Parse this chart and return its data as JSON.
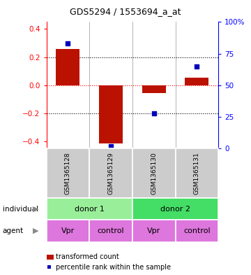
{
  "title": "GDS5294 / 1553694_a_at",
  "categories": [
    "GSM1365128",
    "GSM1365129",
    "GSM1365130",
    "GSM1365131"
  ],
  "bar_values": [
    0.26,
    -0.415,
    -0.055,
    0.055
  ],
  "percentile_values": [
    83,
    2,
    28,
    65
  ],
  "ylim_left": [
    -0.45,
    0.45
  ],
  "ylim_right": [
    0,
    100
  ],
  "yticks_left": [
    -0.4,
    -0.2,
    0.0,
    0.2,
    0.4
  ],
  "yticks_right": [
    0,
    25,
    50,
    75,
    100
  ],
  "ytick_right_labels": [
    "0",
    "25",
    "50",
    "75",
    "100%"
  ],
  "bar_color": "#bb1100",
  "scatter_color": "#0000bb",
  "bar_width": 0.55,
  "individual_color_1": "#99ee99",
  "individual_color_2": "#44dd66",
  "agent_color": "#dd77dd",
  "sample_label_bg": "#cccccc",
  "legend_bar_label": "transformed count",
  "legend_scatter_label": "percentile rank within the sample",
  "row_label_individual": "individual",
  "row_label_agent": "agent",
  "agent_labels": [
    "Vpr",
    "control",
    "Vpr",
    "control"
  ],
  "ind_spans": [
    [
      0,
      2,
      "donor 1"
    ],
    [
      2,
      4,
      "donor 2"
    ]
  ]
}
